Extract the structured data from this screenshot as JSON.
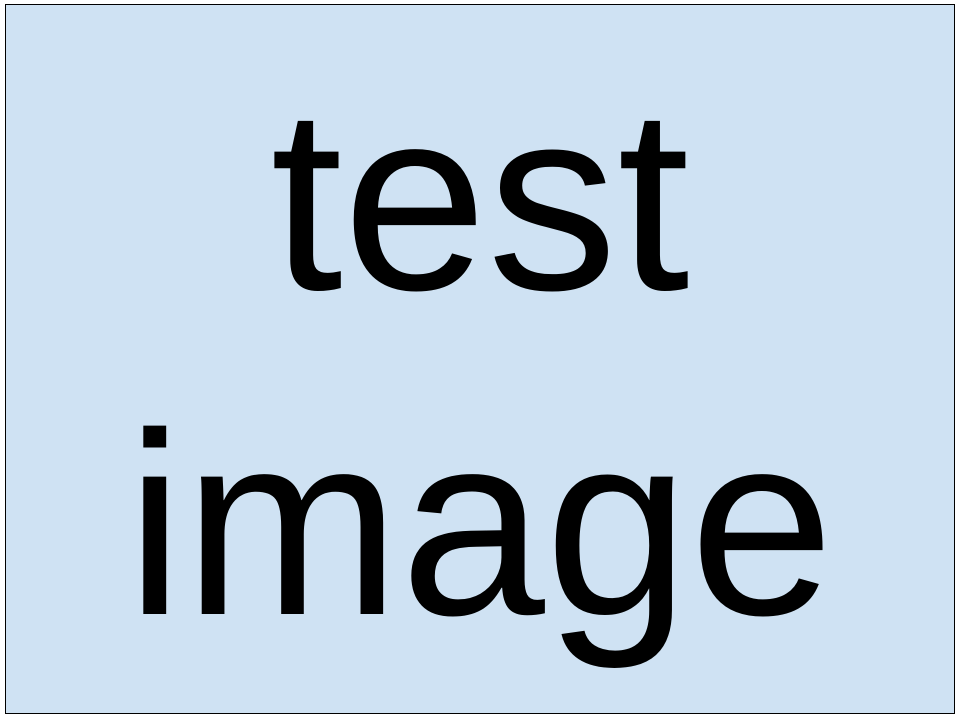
{
  "slide": {
    "background_color": "#cfe2f3",
    "border_color": "#000000",
    "text_color": "#000000",
    "lines": [
      "test",
      "image"
    ]
  }
}
